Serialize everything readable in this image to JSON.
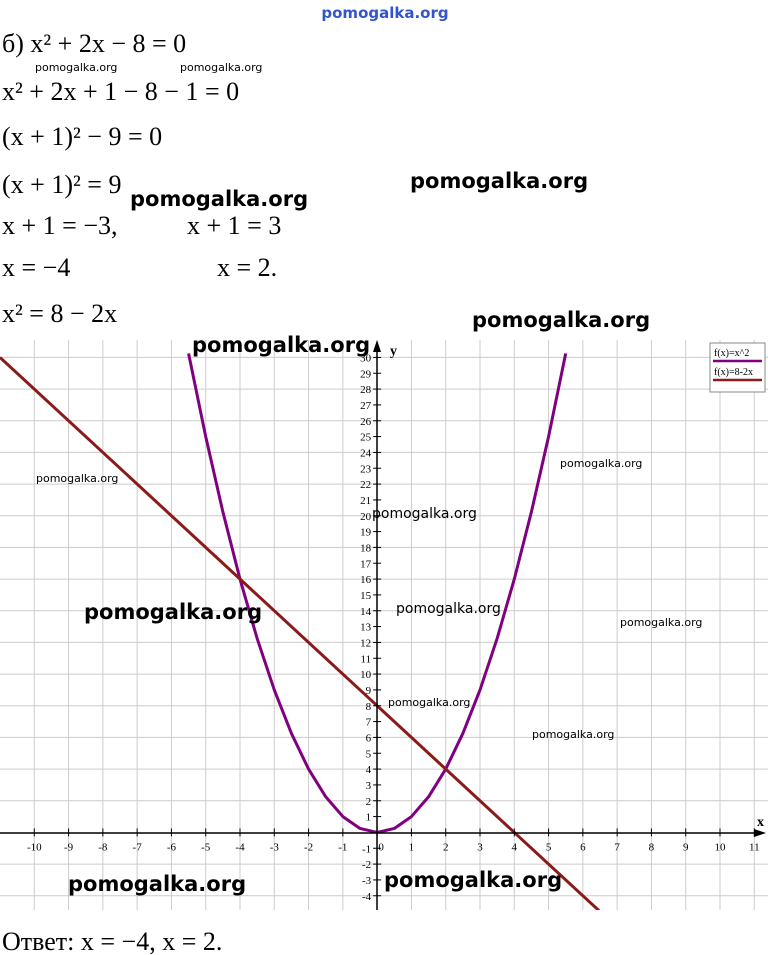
{
  "header": "pomogalka.org",
  "solution": [
    [
      "б) x² + 2x − 8 = 0"
    ],
    [
      "x² + 2x + 1 − 8 − 1 = 0"
    ],
    [
      "(x + 1)² − 9 = 0"
    ],
    [
      "(x + 1)² = 9"
    ],
    [
      "x + 1 = −3,",
      "x + 1 = 3"
    ],
    [
      "x = −4",
      "x = 2."
    ],
    [
      "x² = 8 − 2x"
    ]
  ],
  "watermarks": [
    "pomogalka.org",
    "pomogalka.org",
    "pomogalka.org",
    "pomogalka.org",
    "pomogalka.org",
    "pomogalka.org",
    "pomogalka.org",
    "pomogalka.org",
    "pomogalka.org",
    "pomogalka.org",
    "pomogalka.org",
    "pomogalka.org",
    "pomogalka.org",
    "pomogalka.org",
    "pomogalka.org",
    "pomogalka.org"
  ],
  "answer": "Ответ: x = −4,    x = 2.",
  "chart_data": {
    "type": "line",
    "xlabel": "x",
    "ylabel": "y",
    "xlim": [
      -11,
      11.4
    ],
    "ylim": [
      -4.9,
      31.1
    ],
    "xticks": [
      -10,
      -9,
      -8,
      -7,
      -6,
      -5,
      -4,
      -3,
      -2,
      -1,
      0,
      1,
      2,
      3,
      4,
      5,
      6,
      7,
      8,
      9,
      10,
      11
    ],
    "yticks": [
      -4,
      -3,
      -2,
      -1,
      1,
      2,
      3,
      4,
      5,
      6,
      7,
      8,
      9,
      10,
      11,
      12,
      13,
      14,
      15,
      16,
      17,
      18,
      19,
      20,
      21,
      22,
      23,
      24,
      25,
      26,
      27,
      28,
      29,
      30
    ],
    "grid": true,
    "legend": "top-right",
    "series": [
      {
        "name": "f(x)=x^2",
        "color": "#800080",
        "x": [
          -5.5,
          -5,
          -4.5,
          -4,
          -3.5,
          -3,
          -2.5,
          -2,
          -1.5,
          -1,
          -0.5,
          0,
          0.5,
          1,
          1.5,
          2,
          2.5,
          3,
          3.5,
          4,
          4.5,
          5,
          5.5
        ],
        "values": [
          30.25,
          25,
          20.25,
          16,
          12.25,
          9,
          6.25,
          4,
          2.25,
          1,
          0.25,
          0,
          0.25,
          1,
          2.25,
          4,
          6.25,
          9,
          12.25,
          16,
          20.25,
          25,
          30.25
        ]
      },
      {
        "name": "f(x)=8-2x",
        "color": "#8b1a1a",
        "x": [
          -11,
          6.5
        ],
        "values": [
          30,
          -5
        ]
      }
    ]
  }
}
